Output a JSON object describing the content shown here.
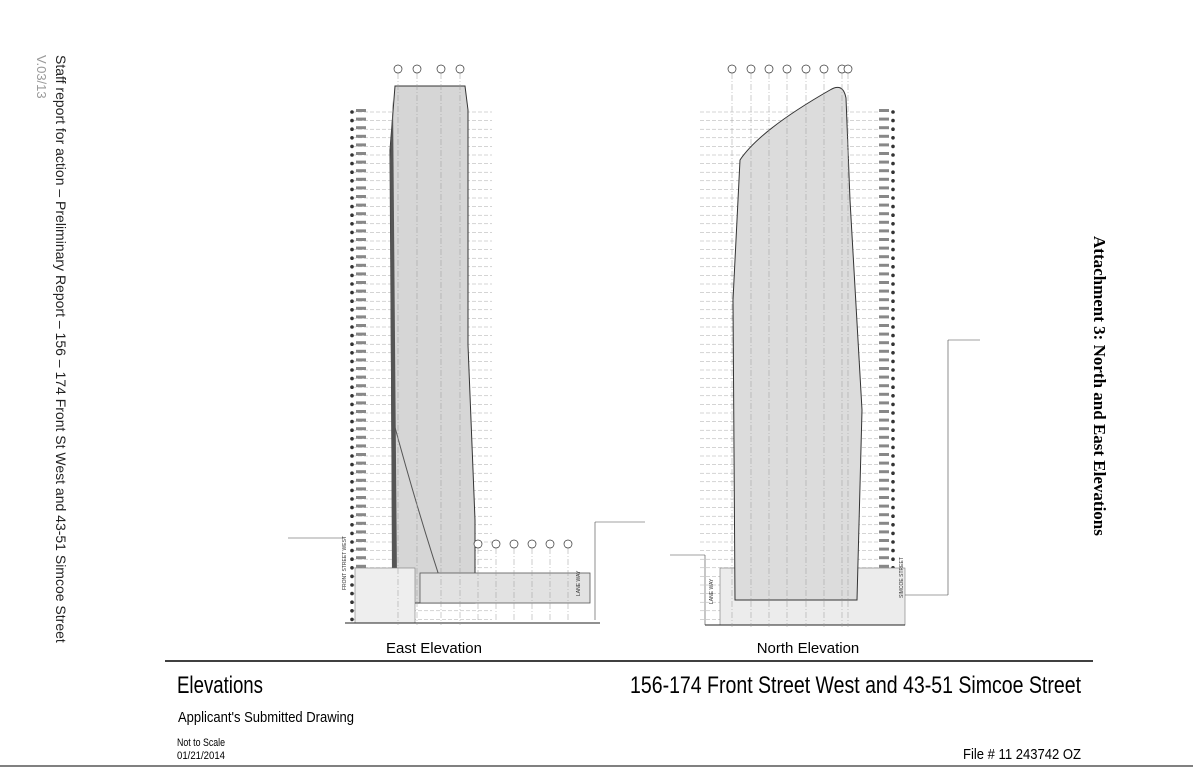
{
  "side_note": {
    "report": "Staff report for action – Preliminary Report – 156 – 174 Front St West and 43-51 Simcoe Street",
    "version": "V.03/13"
  },
  "attachment_title": "Attachment 3:  North and East Elevations",
  "drawings": [
    {
      "label": "East Elevation",
      "street_labels": [
        "FRONT STREET WEST",
        "LANE WAY"
      ]
    },
    {
      "label": "North Elevation",
      "street_labels": [
        "LANE WAY",
        "SIMCOE STREET"
      ]
    }
  ],
  "footer": {
    "title": "Elevations",
    "address": "156-174 Front Street West and 43-51 Simcoe Street",
    "subtitle": "Applicant's Submitted Drawing",
    "scale": "Not to Scale",
    "date": "01/21/2014",
    "file": "File # 11 243742 OZ"
  }
}
